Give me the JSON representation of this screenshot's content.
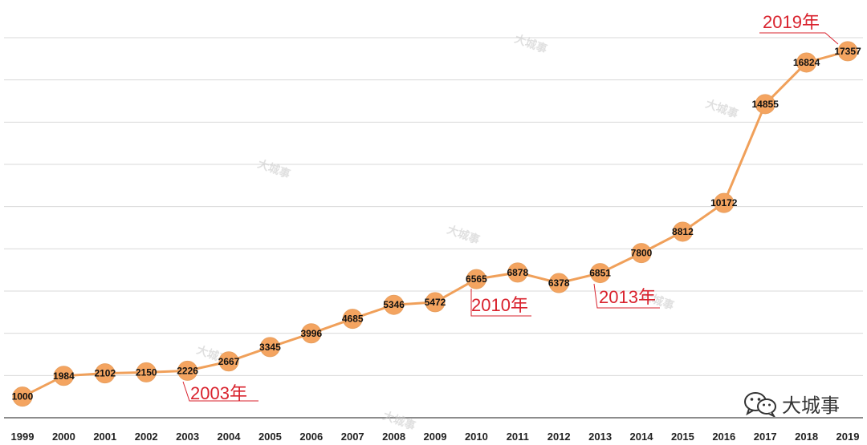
{
  "chart_data": {
    "type": "line",
    "title": "",
    "xlabel": "",
    "ylabel": "",
    "categories": [
      "1999",
      "2000",
      "2001",
      "2002",
      "2003",
      "2004",
      "2005",
      "2006",
      "2007",
      "2008",
      "2009",
      "2010",
      "2011",
      "2012",
      "2013",
      "2014",
      "2015",
      "2016",
      "2017",
      "2018",
      "2019"
    ],
    "series": [
      {
        "values": [
          1000,
          1984,
          2102,
          2150,
          2226,
          2667,
          3345,
          3996,
          4685,
          5346,
          5472,
          6565,
          6878,
          6378,
          6851,
          7800,
          8812,
          10172,
          14855,
          16824,
          17357
        ]
      }
    ],
    "ylim": [
      0,
      18000
    ],
    "grid": true,
    "legend": "none",
    "colors": {
      "line": "#f0a05a",
      "marker": "#f4a460",
      "annotation": "#d9232e"
    },
    "annotations": [
      {
        "text": "2003年",
        "category": "2003"
      },
      {
        "text": "2010年",
        "category": "2010"
      },
      {
        "text": "2013年",
        "category": "2013"
      },
      {
        "text": "2019年",
        "category": "2019"
      }
    ]
  },
  "watermark": {
    "text": "大城事"
  },
  "brand": {
    "name": "大城事",
    "icon": "wechat-icon"
  }
}
